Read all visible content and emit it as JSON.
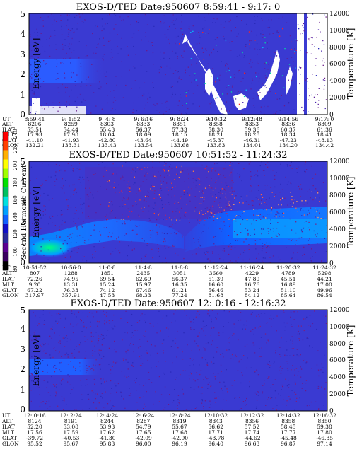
{
  "colorbar": {
    "label": "Second Harmonic Current",
    "ticks": [
      "80",
      "100",
      "120",
      "140",
      "160",
      "180",
      "200",
      "220",
      "240"
    ],
    "colors": [
      "#000000",
      "#3a0060",
      "#5a0090",
      "#2a2a9a",
      "#1010c8",
      "#1060ff",
      "#00a0ff",
      "#00e0e0",
      "#00c060",
      "#00e000",
      "#a0ff00",
      "#ffff00",
      "#ffb000",
      "#ff4000",
      "#ff0000"
    ]
  },
  "panels": [
    {
      "title": "EXOS-D/TED   Date:950607   8:59:41 - 9:17: 0",
      "ylabel_left": "Energy [eV]",
      "ylabel_right": "Temperature [K]",
      "yticks_left": [
        "0",
        "1",
        "2",
        "3",
        "4",
        "5"
      ],
      "yticks_right": [
        "0",
        "2000",
        "4000",
        "6000",
        "8000",
        "10000",
        "12000"
      ],
      "row_labels": [
        "UT",
        "ALT",
        "ILAT",
        "MLT",
        "GLAT",
        "GLON"
      ],
      "columns": [
        [
          "8:59:41",
          "8206",
          "53.51",
          "17.93",
          "-41.10",
          "132.21"
        ],
        [
          "9: 1:52",
          "8259",
          "54.44",
          "17.98",
          "-41.93",
          "133.31"
        ],
        [
          "9: 4: 8",
          "8303",
          "55.43",
          "18.04",
          "-42.80",
          "133.43"
        ],
        [
          "9: 6:16",
          "8333",
          "56.37",
          "18.09",
          "-43.64",
          "133.54"
        ],
        [
          "9: 8:24",
          "8351",
          "57.33",
          "18.15",
          "-44.49",
          "133.68"
        ],
        [
          "9:10:32",
          "8358",
          "58.30",
          "18.21",
          "-45.37",
          "133.83"
        ],
        [
          "9:12:48",
          "8353",
          "59.36",
          "18.28",
          "-46.31",
          "134.01"
        ],
        [
          "9:14:56",
          "8336",
          "60.37",
          "18.34",
          "-47.23",
          "134.20"
        ],
        [
          "9:17: 0",
          "8309",
          "61.36",
          "18.41",
          "-48.13",
          "134.42"
        ]
      ]
    },
    {
      "title": "EXOS-D/TED   Date:950607   10:51:52 - 11:24:32",
      "ylabel_left": "Energy [eV]",
      "ylabel_right": "Temperature [K]",
      "yticks_left": [
        "0",
        "1",
        "2",
        "3",
        "4",
        "5"
      ],
      "yticks_right": [
        "0",
        "2000",
        "4000",
        "6000",
        "8000",
        "10000",
        "12000"
      ],
      "row_labels": [
        "UT",
        "ALT",
        "ILAT",
        "MLT",
        "GLAT",
        "GLON"
      ],
      "columns": [
        [
          "10:51:52",
          "807",
          "72.26",
          "9.20",
          "67.22",
          "317.97"
        ],
        [
          "10:56:0",
          "1288",
          "74.95",
          "13.31",
          "76.33",
          "357.91"
        ],
        [
          "11:0:8",
          "1851",
          "69.54",
          "15.24",
          "74.12",
          "47.53"
        ],
        [
          "11:4:8",
          "2435",
          "62.69",
          "15.97",
          "67.46",
          "68.33"
        ],
        [
          "11:8:8",
          "3051",
          "56.37",
          "16.35",
          "61.21",
          "77.24"
        ],
        [
          "11:12:24",
          "3660",
          "51.39",
          "16.60",
          "56.46",
          "81.68"
        ],
        [
          "11:16:24",
          "4229",
          "47.89",
          "16.76",
          "53.24",
          "84.12"
        ],
        [
          "11:20:32",
          "4789",
          "45.51",
          "16.89",
          "51.10",
          "85.64"
        ],
        [
          "11:24:32",
          "5298",
          "44.21",
          "17.00",
          "49.96",
          "86.54"
        ]
      ]
    },
    {
      "title": "EXOS-D/TED   Date:950607   12: 0:16 - 12:16:32",
      "ylabel_left": "Energy [eV]",
      "ylabel_right": "Temperature [K]",
      "yticks_left": [
        "0",
        "1",
        "2",
        "3",
        "4",
        "5"
      ],
      "yticks_right": [
        "0",
        "2000",
        "4000",
        "6000",
        "8000",
        "10000",
        "12000"
      ],
      "row_labels": [
        "UT",
        "ALT",
        "ILAT",
        "MLT",
        "GLAT",
        "GLON"
      ],
      "columns": [
        [
          "12: 0:16",
          "8124",
          "52.20",
          "17.56",
          "-39.72",
          "95.52"
        ],
        [
          "12: 2:24",
          "8191",
          "53.08",
          "17.59",
          "-40.53",
          "95.67"
        ],
        [
          "12: 4:24",
          "8244",
          "53.93",
          "17.62",
          "-41.30",
          "95.83"
        ],
        [
          "12: 6:24",
          "8287",
          "54.79",
          "17.65",
          "-42.09",
          "96.00"
        ],
        [
          "12: 8:24",
          "8319",
          "55.67",
          "17.68",
          "-42.90",
          "96.19"
        ],
        [
          "12:10:32",
          "8343",
          "56.62",
          "17.71",
          "-43.78",
          "96.40"
        ],
        [
          "12:12:32",
          "8356",
          "57.52",
          "17.74",
          "-44.62",
          "96.63"
        ],
        [
          "12:14:32",
          "8358",
          "58.45",
          "17.77",
          "-45.48",
          "96.87"
        ],
        [
          "12:16:32",
          "8350",
          "59.38",
          "17.80",
          "-46.35",
          "97.14"
        ]
      ]
    }
  ],
  "chart_data": [
    {
      "type": "heatmap",
      "title": "EXOS-D/TED   Date:950607   8:59:41 - 9:17: 0",
      "xlabel": "",
      "ylabel": "Energy [eV]",
      "ylabel_right": "Temperature [K]",
      "ylim": [
        0,
        5
      ],
      "ylim_right": [
        0,
        12000
      ],
      "colorbar_label": "Second Harmonic Current",
      "colorbar_range": [
        80,
        240
      ],
      "x": [
        "8:59:41",
        "9:17: 0"
      ],
      "features": [
        {
          "name": "low-energy band",
          "energy_range": [
            1.8,
            2.6
          ],
          "value": 150,
          "time_span": "8:59:41 - 9:1:52"
        },
        {
          "name": "background",
          "value": 130
        },
        {
          "name": "no data (white)",
          "time_span": "9:14:56 - 9:17: 0"
        }
      ]
    },
    {
      "type": "heatmap",
      "title": "EXOS-D/TED   Date:950607   10:51:52 - 11:24:32",
      "xlabel": "",
      "ylabel": "Energy [eV]",
      "ylabel_right": "Temperature [K]",
      "ylim": [
        0,
        5
      ],
      "ylim_right": [
        0,
        12000
      ],
      "colorbar_label": "Second Harmonic Current",
      "colorbar_range": [
        80,
        240
      ],
      "x": [
        "10:51:52",
        "11:24:32"
      ],
      "features": [
        {
          "name": "enhancement",
          "energy_range": [
            0.3,
            1.2
          ],
          "value": 200,
          "time_span": "10:51:52 - 10:56:0"
        },
        {
          "name": "band",
          "energy_range": [
            1.0,
            2.2
          ],
          "value": 160,
          "time_span": "10:56:0 - 11:8:8"
        },
        {
          "name": "band",
          "energy_range": [
            1.2,
            2.8
          ],
          "value": 165,
          "time_span": "11:12:24 - 11:24:32"
        },
        {
          "name": "background",
          "value": 130
        }
      ]
    },
    {
      "type": "heatmap",
      "title": "EXOS-D/TED   Date:950607   12: 0:16 - 12:16:32",
      "xlabel": "",
      "ylabel": "Energy [eV]",
      "ylabel_right": "Temperature [K]",
      "ylim": [
        0,
        5
      ],
      "ylim_right": [
        0,
        12000
      ],
      "colorbar_label": "Second Harmonic Current",
      "colorbar_range": [
        80,
        240
      ],
      "x": [
        "12: 0:16",
        "12:16:32"
      ],
      "features": [
        {
          "name": "low-energy band",
          "energy_range": [
            1.8,
            2.5
          ],
          "value": 150,
          "time_span": "12: 0:16 - 12: 2:24"
        },
        {
          "name": "background",
          "value": 130
        }
      ]
    }
  ]
}
